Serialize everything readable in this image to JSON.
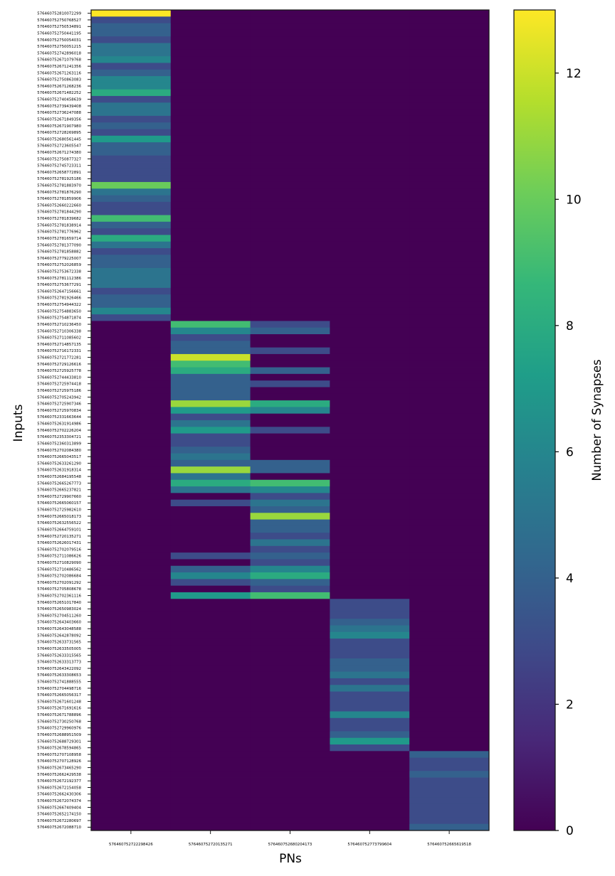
{
  "chart_data": {
    "type": "heatmap",
    "title": "",
    "xlabel": "PNs",
    "ylabel": "Inputs",
    "colormap": {
      "name": "viridis",
      "stops": [
        "#440154",
        "#482878",
        "#3e4a89",
        "#31688e",
        "#26828e",
        "#1f9e89",
        "#35b779",
        "#6dcd59",
        "#b4de2c",
        "#fde725"
      ]
    },
    "value_range": [
      0,
      13
    ],
    "colorbar": {
      "label": "Number of Synapses",
      "ticks": [
        0,
        2,
        4,
        6,
        8,
        10,
        12
      ],
      "tick_labels": [
        "0",
        "2",
        "4",
        "6",
        "8",
        "10",
        "12"
      ],
      "placement": "right"
    },
    "grid": false,
    "x_categories": [
      "576460752722298426",
      "576460752720135271",
      "576460752680204173",
      "576460752773799604",
      "576460752665619518"
    ],
    "y_categories": [
      "576460752810072299",
      "576460752750768527",
      "576460752750534891",
      "576460752750441195",
      "576460752750054031",
      "576460752750051215",
      "576460752742896018",
      "576460752671079768",
      "576460752671241356",
      "576460752671263116",
      "576460752750863083",
      "576460752671268236",
      "576460752671482252",
      "576460752740458639",
      "576460752739439408",
      "576460752736247088",
      "576460752671849356",
      "576460752671907980",
      "576460752728269895",
      "576460752680561445",
      "576460752723605547",
      "576460752671274380",
      "576460752750877327",
      "576460752745723311",
      "576460752658772891",
      "576460752781925186",
      "576460752781883970",
      "576460752781876290",
      "576460752781859906",
      "576460752660222660",
      "576460752781844290",
      "576460752781839682",
      "576460752781838914",
      "576460752781776962",
      "576460752781659714",
      "576460752781377090",
      "576460752781858882",
      "576460752779225007",
      "576460752752026859",
      "576460752753672338",
      "576460752781112386",
      "576460752753677291",
      "576460752647156661",
      "576460752781926466",
      "576460752754944322",
      "576460752754883650",
      "576460752754871874",
      "576460752710236450",
      "576460752710306338",
      "576460752711085602",
      "576460752714857135",
      "576460752716172331",
      "576460752721772281",
      "576460752729126616",
      "576460752725925778",
      "576460752744433810",
      "576460752725974418",
      "576460752725975186",
      "576460752705243942",
      "576460752725907346",
      "576460752725970834",
      "576460752331663644",
      "576460752631914986",
      "576460752702226204",
      "576460752353304721",
      "576460752360313899",
      "576460752702084380",
      "576460752665043517",
      "576460752633261290",
      "576460752631918314",
      "576460752684195548",
      "576460752665267773",
      "576460752665237821",
      "576460752729907660",
      "576460752665060157",
      "576460752725982610",
      "576460752665018173",
      "576460752632556522",
      "576460752664759101",
      "576460752720135271",
      "576460752626017431",
      "576460752702079516",
      "576460752711086626",
      "576460752710829090",
      "576460752710486562",
      "576460752702086684",
      "576460752702091292",
      "576460752705808678",
      "576460752702361116",
      "576460752651017840",
      "576460752650983024",
      "576460752704511260",
      "576460752643403660",
      "576460752643048588",
      "576460752642878092",
      "576460752633731565",
      "576460752633505005",
      "576460752633315565",
      "576460752633313773",
      "576460752643422092",
      "576460752633308653",
      "576460752741888555",
      "576460752704498716",
      "576460752665056317",
      "576460752671601248",
      "576460752671691616",
      "576460752671788896",
      "576460752730250768",
      "576460752729960976",
      "576460752688951509",
      "576460752688729301",
      "576460752678594865",
      "576460752707108958",
      "576460752707128926",
      "576460752673465290",
      "576460752662429538",
      "576460752672192377",
      "576460752672154058",
      "576460752662430306",
      "576460752672074374",
      "576460752667409404",
      "576460752652174150",
      "576460752672280697",
      "576460752672088710"
    ],
    "values": [
      [
        13,
        0,
        0,
        0,
        0
      ],
      [
        3,
        0,
        0,
        0,
        0
      ],
      [
        4,
        0,
        0,
        0,
        0
      ],
      [
        4,
        0,
        0,
        0,
        0
      ],
      [
        3,
        0,
        0,
        0,
        0
      ],
      [
        5,
        0,
        0,
        0,
        0
      ],
      [
        5,
        0,
        0,
        0,
        0
      ],
      [
        6,
        0,
        0,
        0,
        0
      ],
      [
        3,
        0,
        0,
        0,
        0
      ],
      [
        4,
        0,
        0,
        0,
        0
      ],
      [
        6,
        0,
        0,
        0,
        0
      ],
      [
        6,
        0,
        0,
        0,
        0
      ],
      [
        8,
        0,
        0,
        0,
        0
      ],
      [
        3,
        0,
        0,
        0,
        0
      ],
      [
        5,
        0,
        0,
        0,
        0
      ],
      [
        5,
        0,
        0,
        0,
        0
      ],
      [
        3,
        0,
        0,
        0,
        0
      ],
      [
        4,
        0,
        0,
        0,
        0
      ],
      [
        3,
        0,
        0,
        0,
        0
      ],
      [
        7,
        0,
        0,
        0,
        0
      ],
      [
        4,
        0,
        0,
        0,
        0
      ],
      [
        4,
        0,
        0,
        0,
        0
      ],
      [
        3,
        0,
        0,
        0,
        0
      ],
      [
        3,
        0,
        0,
        0,
        0
      ],
      [
        3,
        0,
        0,
        0,
        0
      ],
      [
        3,
        0,
        0,
        0,
        0
      ],
      [
        10,
        0,
        0,
        0,
        0
      ],
      [
        5,
        0,
        0,
        0,
        0
      ],
      [
        4,
        0,
        0,
        0,
        0
      ],
      [
        3,
        0,
        0,
        0,
        0
      ],
      [
        3,
        0,
        0,
        0,
        0
      ],
      [
        9,
        0,
        0,
        0,
        0
      ],
      [
        4,
        0,
        0,
        0,
        0
      ],
      [
        3,
        0,
        0,
        0,
        0
      ],
      [
        8,
        0,
        0,
        0,
        0
      ],
      [
        5,
        0,
        0,
        0,
        0
      ],
      [
        3,
        0,
        0,
        0,
        0
      ],
      [
        4,
        0,
        0,
        0,
        0
      ],
      [
        4,
        0,
        0,
        0,
        0
      ],
      [
        5,
        0,
        0,
        0,
        0
      ],
      [
        5,
        0,
        0,
        0,
        0
      ],
      [
        5,
        0,
        0,
        0,
        0
      ],
      [
        3,
        0,
        0,
        0,
        0
      ],
      [
        4,
        0,
        0,
        0,
        0
      ],
      [
        4,
        0,
        0,
        0,
        0
      ],
      [
        6,
        0,
        0,
        0,
        0
      ],
      [
        3,
        0,
        0,
        0,
        0
      ],
      [
        0,
        9,
        3,
        0,
        0
      ],
      [
        0,
        6,
        4,
        0,
        0
      ],
      [
        0,
        3,
        0,
        0,
        0
      ],
      [
        0,
        4,
        0,
        0,
        0
      ],
      [
        0,
        4,
        3,
        0,
        0
      ],
      [
        0,
        12,
        0,
        0,
        0
      ],
      [
        0,
        9,
        0,
        0,
        0
      ],
      [
        0,
        8,
        4,
        0,
        0
      ],
      [
        0,
        4,
        0,
        0,
        0
      ],
      [
        0,
        4,
        3,
        0,
        0
      ],
      [
        0,
        4,
        0,
        0,
        0
      ],
      [
        0,
        4,
        0,
        0,
        0
      ],
      [
        0,
        11,
        8,
        0,
        0
      ],
      [
        0,
        7,
        6,
        0,
        0
      ],
      [
        0,
        3,
        0,
        0,
        0
      ],
      [
        0,
        5,
        0,
        0,
        0
      ],
      [
        0,
        7,
        3,
        0,
        0
      ],
      [
        0,
        3,
        0,
        0,
        0
      ],
      [
        0,
        3,
        0,
        0,
        0
      ],
      [
        0,
        4,
        0,
        0,
        0
      ],
      [
        0,
        5,
        0,
        0,
        0
      ],
      [
        0,
        4,
        4,
        0,
        0
      ],
      [
        0,
        11,
        4,
        0,
        0
      ],
      [
        0,
        5,
        0,
        0,
        0
      ],
      [
        0,
        8,
        9,
        0,
        0
      ],
      [
        0,
        5,
        6,
        0,
        0
      ],
      [
        0,
        0,
        3,
        0,
        0
      ],
      [
        0,
        3,
        5,
        0,
        0
      ],
      [
        0,
        0,
        4,
        0,
        0
      ],
      [
        0,
        0,
        11,
        0,
        0
      ],
      [
        0,
        0,
        4,
        0,
        0
      ],
      [
        0,
        0,
        4,
        0,
        0
      ],
      [
        0,
        0,
        3,
        0,
        0
      ],
      [
        0,
        0,
        5,
        0,
        0
      ],
      [
        0,
        0,
        3,
        0,
        0
      ],
      [
        0,
        3,
        4,
        0,
        0
      ],
      [
        0,
        0,
        3,
        0,
        0
      ],
      [
        0,
        4,
        6,
        0,
        0
      ],
      [
        0,
        6,
        8,
        0,
        0
      ],
      [
        0,
        3,
        4,
        0,
        0
      ],
      [
        0,
        0,
        3,
        0,
        0
      ],
      [
        0,
        7,
        9,
        0,
        0
      ],
      [
        0,
        0,
        0,
        3,
        0
      ],
      [
        0,
        0,
        0,
        3,
        0
      ],
      [
        0,
        0,
        0,
        3,
        0
      ],
      [
        0,
        0,
        0,
        4,
        0
      ],
      [
        0,
        0,
        0,
        5,
        0
      ],
      [
        0,
        0,
        0,
        6,
        0
      ],
      [
        0,
        0,
        0,
        3,
        0
      ],
      [
        0,
        0,
        0,
        3,
        0
      ],
      [
        0,
        0,
        0,
        3,
        0
      ],
      [
        0,
        0,
        0,
        4,
        0
      ],
      [
        0,
        0,
        0,
        4,
        0
      ],
      [
        0,
        0,
        0,
        5,
        0
      ],
      [
        0,
        0,
        0,
        3,
        0
      ],
      [
        0,
        0,
        0,
        5,
        0
      ],
      [
        0,
        0,
        0,
        3,
        0
      ],
      [
        0,
        0,
        0,
        3,
        0
      ],
      [
        0,
        0,
        0,
        3,
        0
      ],
      [
        0,
        0,
        0,
        6,
        0
      ],
      [
        0,
        0,
        0,
        3,
        0
      ],
      [
        0,
        0,
        0,
        3,
        0
      ],
      [
        0,
        0,
        0,
        4,
        0
      ],
      [
        0,
        0,
        0,
        7,
        0
      ],
      [
        0,
        0,
        0,
        3,
        0
      ],
      [
        0,
        0,
        0,
        0,
        4
      ],
      [
        0,
        0,
        0,
        0,
        3
      ],
      [
        0,
        0,
        0,
        0,
        3
      ],
      [
        0,
        0,
        0,
        0,
        4
      ],
      [
        0,
        0,
        0,
        0,
        3
      ],
      [
        0,
        0,
        0,
        0,
        3
      ],
      [
        0,
        0,
        0,
        0,
        3
      ],
      [
        0,
        0,
        0,
        0,
        3
      ],
      [
        0,
        0,
        0,
        0,
        3
      ],
      [
        0,
        0,
        0,
        0,
        3
      ],
      [
        0,
        0,
        0,
        0,
        3
      ],
      [
        0,
        0,
        0,
        0,
        4
      ]
    ]
  }
}
